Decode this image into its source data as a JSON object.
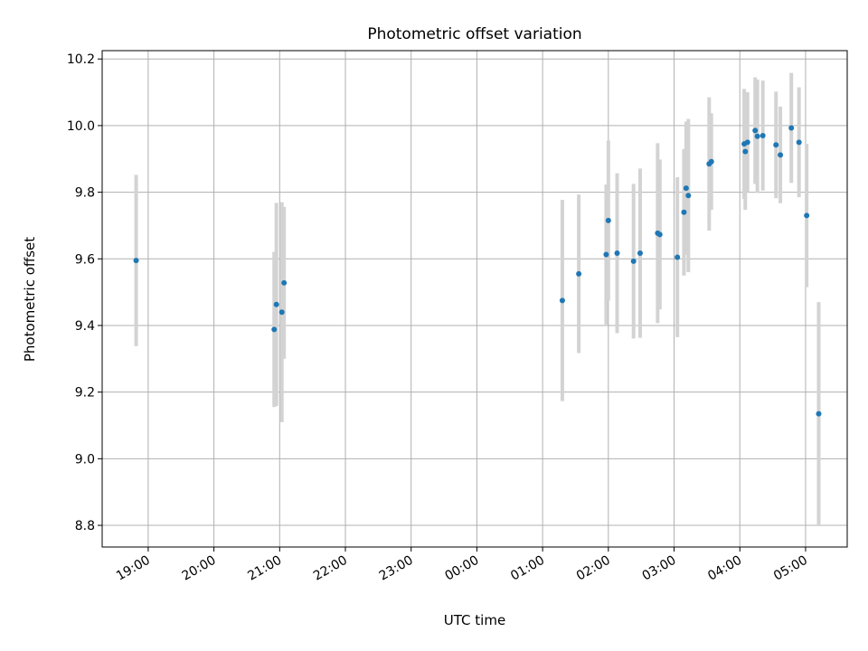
{
  "chart_data": {
    "type": "scatter",
    "title": "Photometric offset variation",
    "xlabel": "UTC time",
    "ylabel": "Photometric offset",
    "xlim": [
      "18:18",
      "05:38"
    ],
    "ylim": [
      8.735,
      10.225
    ],
    "grid": true,
    "x_ticks": [
      "19:00",
      "20:00",
      "21:00",
      "22:00",
      "23:00",
      "00:00",
      "01:00",
      "02:00",
      "03:00",
      "04:00",
      "05:00"
    ],
    "y_ticks": [
      "8.8",
      "9.0",
      "9.2",
      "9.4",
      "9.6",
      "9.8",
      "10.0",
      "10.2"
    ],
    "marker_color": "#1f77b4",
    "errorbar_color": "#d3d3d3",
    "points": [
      {
        "time": "18:49",
        "y": 9.595,
        "err": 0.257
      },
      {
        "time": "20:55",
        "y": 9.388,
        "err": 0.233
      },
      {
        "time": "20:57",
        "y": 9.463,
        "err": 0.305
      },
      {
        "time": "21:02",
        "y": 9.44,
        "err": 0.33
      },
      {
        "time": "21:04",
        "y": 9.528,
        "err": 0.228
      },
      {
        "time": "01:18",
        "y": 9.475,
        "err": 0.302
      },
      {
        "time": "01:33",
        "y": 9.555,
        "err": 0.238
      },
      {
        "time": "01:58",
        "y": 9.613,
        "err": 0.21
      },
      {
        "time": "02:00",
        "y": 9.715,
        "err": 0.24
      },
      {
        "time": "02:08",
        "y": 9.617,
        "err": 0.24
      },
      {
        "time": "02:23",
        "y": 9.593,
        "err": 0.232
      },
      {
        "time": "02:29",
        "y": 9.617,
        "err": 0.254
      },
      {
        "time": "02:45",
        "y": 9.677,
        "err": 0.27
      },
      {
        "time": "02:47",
        "y": 9.673,
        "err": 0.225
      },
      {
        "time": "03:03",
        "y": 9.605,
        "err": 0.24
      },
      {
        "time": "03:09",
        "y": 9.74,
        "err": 0.19
      },
      {
        "time": "03:11",
        "y": 9.812,
        "err": 0.2
      },
      {
        "time": "03:13",
        "y": 9.79,
        "err": 0.23
      },
      {
        "time": "03:32",
        "y": 9.885,
        "err": 0.2
      },
      {
        "time": "03:34",
        "y": 9.892,
        "err": 0.145
      },
      {
        "time": "04:04",
        "y": 9.945,
        "err": 0.165
      },
      {
        "time": "04:05",
        "y": 9.922,
        "err": 0.175
      },
      {
        "time": "04:07",
        "y": 9.95,
        "err": 0.15
      },
      {
        "time": "04:14",
        "y": 9.985,
        "err": 0.16
      },
      {
        "time": "04:16",
        "y": 9.968,
        "err": 0.17
      },
      {
        "time": "04:21",
        "y": 9.97,
        "err": 0.165
      },
      {
        "time": "04:33",
        "y": 9.942,
        "err": 0.16
      },
      {
        "time": "04:37",
        "y": 9.912,
        "err": 0.145
      },
      {
        "time": "04:47",
        "y": 9.993,
        "err": 0.165
      },
      {
        "time": "04:54",
        "y": 9.95,
        "err": 0.165
      },
      {
        "time": "05:01",
        "y": 9.73,
        "err": 0.215
      },
      {
        "time": "05:12",
        "y": 9.135,
        "err": 0.335
      }
    ]
  }
}
